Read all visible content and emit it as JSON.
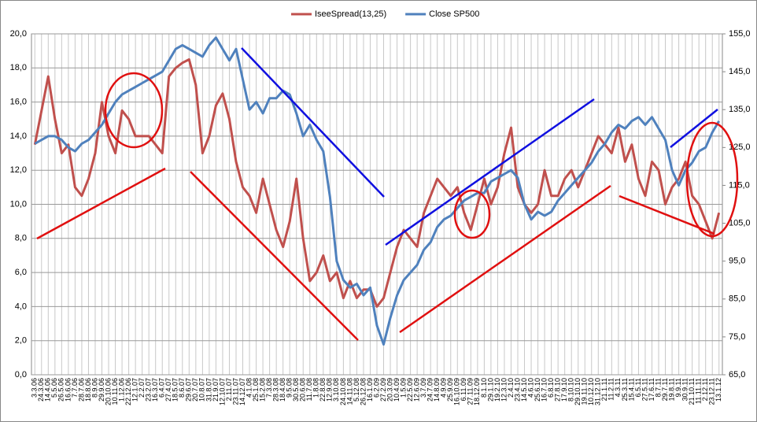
{
  "chart_data": {
    "type": "line",
    "categories": [
      "3.3.06",
      "24.3.06",
      "14.4.06",
      "5.5.06",
      "26.5.06",
      "16.6.06",
      "7.7.06",
      "28.7.06",
      "18.8.06",
      "8.9.06",
      "29.9.06",
      "20.10.06",
      "10.11.06",
      "1.12.06",
      "22.12.06",
      "12.1.07",
      "2.2.07",
      "23.2.07",
      "16.3.07",
      "6.4.07",
      "27.4.07",
      "18.5.07",
      "8.6.07",
      "29.6.07",
      "20.7.07",
      "10.8.07",
      "31.8.07",
      "21.9.07",
      "12.10.07",
      "2.11.07",
      "23.11.07",
      "14.12.07",
      "4.1.08",
      "25.1.08",
      "15.2.08",
      "7.3.08",
      "28.3.08",
      "18.4.08",
      "9.5.08",
      "30.5.08",
      "20.6.08",
      "11.7.08",
      "1.8.08",
      "22.8.08",
      "12.9.08",
      "3.10.08",
      "24.10.08",
      "14.11.08",
      "5.12.08",
      "26.12.08",
      "16.1.09",
      "6.2.09",
      "27.2.09",
      "20.3.09",
      "10.4.09",
      "1.5.09",
      "22.5.09",
      "12.6.09",
      "3.7.09",
      "24.7.09",
      "14.8.09",
      "4.9.09",
      "25.9.09",
      "16.10.09",
      "6.11.09",
      "27.11.09",
      "18.12.09",
      "8.1.10",
      "29.1.10",
      "19.2.10",
      "12.3.10",
      "2.4.10",
      "23.4.10",
      "14.5.10",
      "4.6.10",
      "25.6.10",
      "16.7.10",
      "6.8.10",
      "27.8.10",
      "17.9.10",
      "8.10.10",
      "29.10.10",
      "19.11.10",
      "10.12.10",
      "31.12.10",
      "21.1.11",
      "11.2.11",
      "4.3.11",
      "25.3.11",
      "15.4.11",
      "6.5.11",
      "27.5.11",
      "17.6.11",
      "8.7.11",
      "29.7.11",
      "19.8.11",
      "9.9.11",
      "30.9.11",
      "21.10.11",
      "11.11.11",
      "2.12.11",
      "23.12.11",
      "13.1.12"
    ],
    "series": [
      {
        "name": "IseeSpread(13,25)",
        "color": "#c0504d",
        "axis": "y",
        "values": [
          13.5,
          15.5,
          17.5,
          15,
          13,
          13.5,
          11,
          10.5,
          11.5,
          13,
          16,
          14,
          13,
          15.5,
          15,
          14,
          14,
          14,
          13.5,
          13,
          17.5,
          18,
          18.3,
          18.5,
          17,
          13,
          14,
          15.8,
          16.5,
          15,
          12.5,
          11,
          10.5,
          9.5,
          11.5,
          10,
          8.5,
          7.5,
          9,
          11.5,
          8,
          5.5,
          6,
          7,
          5.5,
          6,
          4.5,
          5.5,
          4.5,
          5,
          5,
          4,
          4.5,
          6,
          7.5,
          8.5,
          8,
          7.5,
          9.5,
          10.5,
          11.5,
          11,
          10.5,
          11,
          9.5,
          8.5,
          10,
          11.5,
          10,
          11,
          13,
          14.5,
          11,
          10,
          9.5,
          10,
          12,
          10.5,
          10.5,
          11.5,
          12,
          11,
          12,
          13,
          14,
          13.5,
          13,
          14.5,
          12.5,
          13.5,
          11.5,
          10.5,
          12.5,
          12,
          10,
          11,
          11.5,
          12.5,
          10.5,
          10,
          9,
          8,
          9.5
        ]
      },
      {
        "name": "Close SP500",
        "color": "#4f81bd",
        "axis": "y2",
        "values": [
          126,
          127,
          128,
          128,
          127,
          125,
          124,
          126,
          127,
          129,
          131,
          134,
          137,
          139,
          140,
          141,
          142,
          143,
          144,
          145,
          148,
          151,
          152,
          151,
          150,
          149,
          152,
          154,
          151,
          148,
          151,
          143,
          135,
          137,
          134,
          138,
          138,
          140,
          139,
          134,
          128,
          131,
          127,
          124,
          112,
          95,
          90,
          88,
          89,
          86,
          88,
          78,
          73,
          80,
          86,
          90,
          92,
          94,
          98,
          100,
          104,
          106,
          107,
          109,
          111,
          112,
          113,
          113,
          116,
          117,
          118,
          119,
          117,
          110,
          106,
          108,
          107,
          108,
          111,
          113,
          115,
          117,
          119,
          121,
          124,
          126,
          129,
          131,
          130,
          132,
          133,
          131,
          133,
          130,
          127,
          119,
          115,
          119,
          121,
          124,
          125,
          129,
          132
        ]
      }
    ],
    "ylim": [
      0,
      20
    ],
    "yticks": [
      {
        "value": 0,
        "label": "0,0"
      },
      {
        "value": 2,
        "label": "2,0"
      },
      {
        "value": 4,
        "label": "4,0"
      },
      {
        "value": 6,
        "label": "6,0"
      },
      {
        "value": 8,
        "label": "8,0"
      },
      {
        "value": 10,
        "label": "10,0"
      },
      {
        "value": 12,
        "label": "12,0"
      },
      {
        "value": 14,
        "label": "14,0"
      },
      {
        "value": 16,
        "label": "16,0"
      },
      {
        "value": 18,
        "label": "18,0"
      },
      {
        "value": 20,
        "label": "20,0"
      }
    ],
    "y2lim": [
      65,
      155
    ],
    "y2ticks": [
      {
        "value": 65,
        "label": "65,0"
      },
      {
        "value": 75,
        "label": "75,0"
      },
      {
        "value": 85,
        "label": "85,0"
      },
      {
        "value": 95,
        "label": "95,0"
      },
      {
        "value": 105,
        "label": "105,0"
      },
      {
        "value": 115,
        "label": "115,0"
      },
      {
        "value": 125,
        "label": "125,0"
      },
      {
        "value": 135,
        "label": "135,0"
      },
      {
        "value": 145,
        "label": "145,0"
      },
      {
        "value": 155,
        "label": "155,0"
      }
    ],
    "grid": true,
    "legend": "top"
  }
}
